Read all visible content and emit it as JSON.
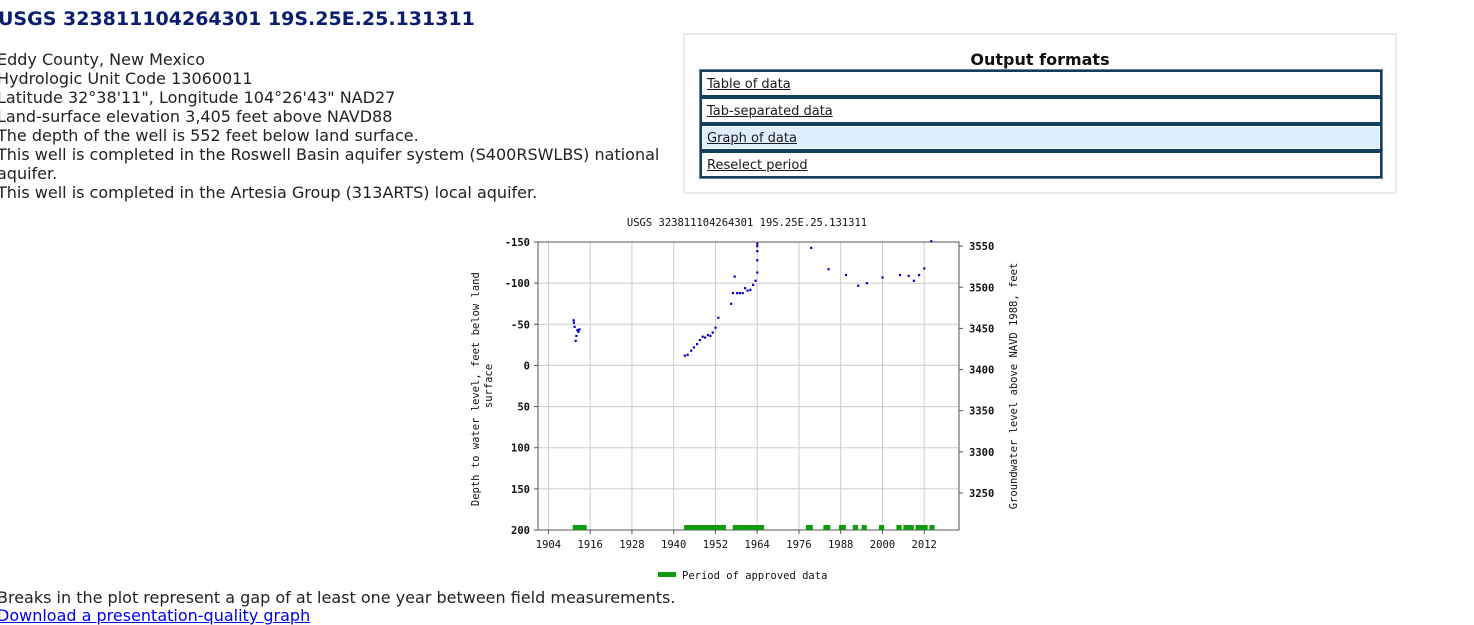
{
  "page": {
    "title": "USGS 323811104264301 19S.25E.25.131311"
  },
  "site_info": {
    "county": "Eddy County, New Mexico",
    "huc": "Hydrologic Unit Code 13060011",
    "latlon": "Latitude  32°38'11\", Longitude 104°26'43\" NAD27",
    "elevation": "Land-surface elevation 3,405 feet above NAVD88",
    "depth": "The depth of the well is 552 feet below land surface.",
    "national_aquifer": "This well is completed in the Roswell Basin aquifer system (S400RSWLBS) national aquifer.",
    "local_aquifer": "This well is completed in the Artesia Group (313ARTS) local aquifer."
  },
  "output_formats": {
    "title": "Output formats",
    "items": [
      {
        "label": "Table of data",
        "active": false
      },
      {
        "label": "Tab-separated data",
        "active": false
      },
      {
        "label": "Graph of data",
        "active": true
      },
      {
        "label": "Reselect period",
        "active": false
      }
    ]
  },
  "chart_data": {
    "type": "scatter",
    "title": "USGS 323811104264301 19S.25E.25.131311",
    "ylabel": "Depth to water level, feet below land surface",
    "y2label": "Groundwater level above NAVD 1988, feet",
    "xlim": [
      1901,
      2022
    ],
    "ylim": [
      -150,
      200
    ],
    "y_inverted": true,
    "y2lim": [
      3555,
      3205
    ],
    "x_ticks": [
      1904,
      1916,
      1928,
      1940,
      1952,
      1964,
      1976,
      1988,
      2000,
      2012
    ],
    "y_ticks": [
      -150,
      -100,
      -50,
      0,
      50,
      100,
      150,
      200
    ],
    "y2_ticks": [
      3550,
      3500,
      3450,
      3400,
      3350,
      3300,
      3250
    ],
    "grid": true,
    "colors": {
      "points": "#0000cc",
      "approved": "#109a10",
      "grid": "#cccccc"
    },
    "series": [
      {
        "values": [
          [
            1911.2,
            -55
          ],
          [
            1911.3,
            -52
          ],
          [
            1911.5,
            -47
          ],
          [
            1911.8,
            -30
          ],
          [
            1912.0,
            -36
          ],
          [
            1912.3,
            -43
          ],
          [
            1912.6,
            -41
          ],
          [
            1912.9,
            -44
          ],
          [
            1943.2,
            -12
          ],
          [
            1944.0,
            -13
          ],
          [
            1945.0,
            -18
          ],
          [
            1945.8,
            -22
          ],
          [
            1946.7,
            -26
          ],
          [
            1947.5,
            -31
          ],
          [
            1948.3,
            -35
          ],
          [
            1949.0,
            -34
          ],
          [
            1949.8,
            -37
          ],
          [
            1950.5,
            -36
          ],
          [
            1951.2,
            -40
          ],
          [
            1952.0,
            -46
          ],
          [
            1952.8,
            -58
          ],
          [
            1956.5,
            -75
          ],
          [
            1957.0,
            -88
          ],
          [
            1957.5,
            -108
          ],
          [
            1958.2,
            -88
          ],
          [
            1959.0,
            -88
          ],
          [
            1959.8,
            -88
          ],
          [
            1960.5,
            -94
          ],
          [
            1961.2,
            -91
          ],
          [
            1962.0,
            -92
          ],
          [
            1962.8,
            -98
          ],
          [
            1963.5,
            -103
          ],
          [
            1964.0,
            -113
          ],
          [
            1964.0,
            -128
          ],
          [
            1964.0,
            -139
          ],
          [
            1964.0,
            -145
          ],
          [
            1964.0,
            -148
          ],
          [
            1979.5,
            -143
          ],
          [
            1984.5,
            -117
          ],
          [
            1989.5,
            -110
          ],
          [
            1993.0,
            -97
          ],
          [
            1995.5,
            -100
          ],
          [
            2000.0,
            -107
          ],
          [
            2005.0,
            -110
          ],
          [
            2007.5,
            -109
          ],
          [
            2009.0,
            -103
          ],
          [
            2010.5,
            -110
          ],
          [
            2012.0,
            -118
          ],
          [
            2014.0,
            -151
          ]
        ]
      }
    ],
    "approved_periods": [
      [
        1911,
        1915
      ],
      [
        1943,
        1955
      ],
      [
        1957,
        1966
      ],
      [
        1978,
        1980
      ],
      [
        1983,
        1985
      ],
      [
        1987.5,
        1989.5
      ],
      [
        1991.5,
        1993
      ],
      [
        1994,
        1995.5
      ],
      [
        1999,
        2000.5
      ],
      [
        2004,
        2005.5
      ],
      [
        2006,
        2009
      ],
      [
        2009.5,
        2013
      ],
      [
        2013.5,
        2015
      ]
    ],
    "legend": "Period of approved data",
    "legend_position": "bottom"
  },
  "footer": {
    "breaks_note": "Breaks in the plot represent a gap of at least one year between field measurements.",
    "download_link": "Download a presentation-quality graph"
  }
}
